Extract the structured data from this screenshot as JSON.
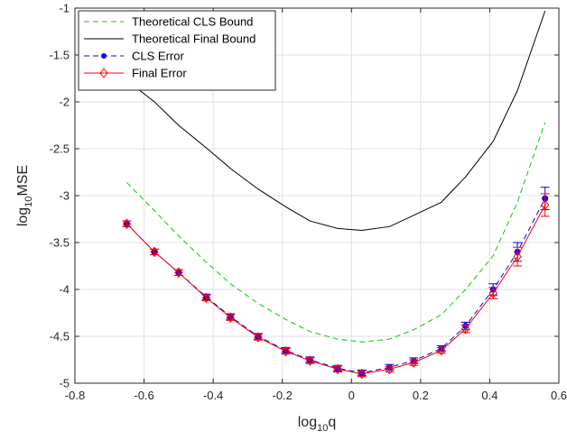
{
  "chart_data": {
    "type": "line",
    "xlabel": {
      "base": "log",
      "sub": "10",
      "tail": "q"
    },
    "ylabel": {
      "base": "log",
      "sub": "10",
      "tail": "MSE"
    },
    "xlim": [
      -0.8,
      0.6
    ],
    "ylim": [
      -5,
      -1
    ],
    "xticks": [
      -0.8,
      -0.6,
      -0.4,
      -0.2,
      0,
      0.2,
      0.4,
      0.6
    ],
    "xtick_labels": [
      "-0.8",
      "-0.6",
      "-0.4",
      "-0.2",
      "0",
      "0.2",
      "0.4",
      "0.6"
    ],
    "yticks": [
      -5,
      -4.5,
      -4,
      -3.5,
      -3,
      -2.5,
      -2,
      -1.5,
      -1
    ],
    "ytick_labels": [
      "-5",
      "-4.5",
      "-4",
      "-3.5",
      "-3",
      "-2.5",
      "-2",
      "-1.5",
      "-1"
    ],
    "grid": true,
    "legend_position": "top-left",
    "series": [
      {
        "name": "Theoretical CLS Bound",
        "color": "#00cc00",
        "style": "dashed",
        "x": [
          -0.65,
          -0.57,
          -0.5,
          -0.42,
          -0.35,
          -0.27,
          -0.19,
          -0.12,
          -0.04,
          0.03,
          0.11,
          0.18,
          0.26,
          0.33,
          0.41,
          0.48,
          0.56
        ],
        "y": [
          -2.86,
          -3.16,
          -3.43,
          -3.71,
          -3.94,
          -4.15,
          -4.32,
          -4.45,
          -4.53,
          -4.56,
          -4.53,
          -4.43,
          -4.27,
          -4.0,
          -3.64,
          -3.07,
          -2.22
        ]
      },
      {
        "name": "Theoretical Final Bound",
        "color": "#000000",
        "style": "solid",
        "x": [
          -0.65,
          -0.57,
          -0.5,
          -0.42,
          -0.35,
          -0.27,
          -0.19,
          -0.12,
          -0.04,
          0.03,
          0.11,
          0.18,
          0.26,
          0.33,
          0.41,
          0.48,
          0.56
        ],
        "y": [
          -1.77,
          -2.0,
          -2.25,
          -2.49,
          -2.71,
          -2.93,
          -3.12,
          -3.27,
          -3.35,
          -3.37,
          -3.33,
          -3.21,
          -3.07,
          -2.8,
          -2.42,
          -1.88,
          -1.03
        ]
      },
      {
        "name": "CLS Error",
        "color": "#0000ff",
        "style": "dashed",
        "marker": "dot",
        "x": [
          -0.65,
          -0.57,
          -0.5,
          -0.42,
          -0.35,
          -0.27,
          -0.19,
          -0.12,
          -0.04,
          0.03,
          0.11,
          0.18,
          0.26,
          0.33,
          0.41,
          0.48,
          0.56
        ],
        "y": [
          -3.3,
          -3.6,
          -3.82,
          -4.08,
          -4.29,
          -4.5,
          -4.65,
          -4.75,
          -4.84,
          -4.89,
          -4.83,
          -4.76,
          -4.63,
          -4.39,
          -4.0,
          -3.6,
          -3.03
        ],
        "err": [
          0.03,
          0.03,
          0.03,
          0.03,
          0.03,
          0.03,
          0.03,
          0.03,
          0.03,
          0.03,
          0.03,
          0.03,
          0.03,
          0.04,
          0.06,
          0.1,
          0.12
        ]
      },
      {
        "name": "Final Error",
        "color": "#ff0000",
        "style": "solid",
        "marker": "diamond",
        "x": [
          -0.65,
          -0.57,
          -0.5,
          -0.42,
          -0.35,
          -0.27,
          -0.19,
          -0.12,
          -0.04,
          0.03,
          0.11,
          0.18,
          0.26,
          0.33,
          0.41,
          0.48,
          0.56
        ],
        "y": [
          -3.3,
          -3.6,
          -3.82,
          -4.09,
          -4.3,
          -4.51,
          -4.66,
          -4.76,
          -4.85,
          -4.9,
          -4.85,
          -4.78,
          -4.65,
          -4.42,
          -4.04,
          -3.65,
          -3.1
        ],
        "err": [
          0.03,
          0.03,
          0.03,
          0.03,
          0.03,
          0.03,
          0.03,
          0.03,
          0.03,
          0.03,
          0.03,
          0.03,
          0.03,
          0.04,
          0.06,
          0.1,
          0.12
        ]
      }
    ]
  }
}
